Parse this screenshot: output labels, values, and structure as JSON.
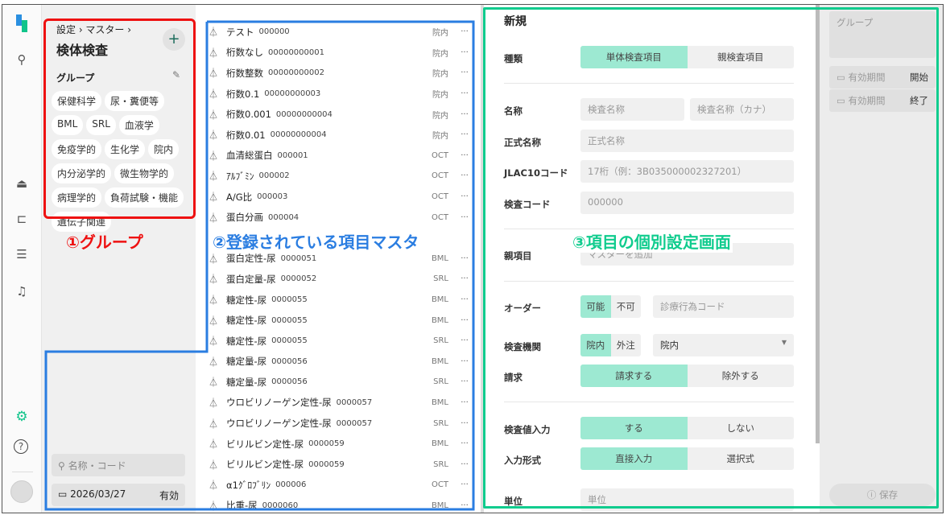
{
  "nav": {
    "icons": [
      "app-logo",
      "patient-search-icon",
      "meal-icon",
      "bed-icon",
      "list-icon",
      "bell-icon",
      "gear-icon",
      "help-icon",
      "avatar"
    ]
  },
  "group_panel": {
    "breadcrumb": "設定 › マスター ›",
    "title": "検体検査",
    "add_label": "+",
    "group_heading": "グループ",
    "chips": [
      "保健科学",
      "尿・糞便等",
      "BML",
      "SRL",
      "血液学",
      "免疫学的",
      "生化学",
      "院内",
      "内分泌学的",
      "微生物学的",
      "病理学的",
      "負荷試験・機能",
      "遺伝子関連"
    ],
    "search_placeholder": "名称・コード",
    "date": "2026/03/27",
    "date_status": "有効"
  },
  "list": {
    "items": [
      {
        "name": "テスト",
        "code": "000000",
        "org": "院内"
      },
      {
        "name": "桁数なし",
        "code": "00000000001",
        "org": "院内"
      },
      {
        "name": "桁数整数",
        "code": "00000000002",
        "org": "院内"
      },
      {
        "name": "桁数0.1",
        "code": "00000000003",
        "org": "院内"
      },
      {
        "name": "桁数0.001",
        "code": "00000000004",
        "org": "院内"
      },
      {
        "name": "桁数0.01",
        "code": "00000000004",
        "org": "院内"
      },
      {
        "name": "血清総蛋白",
        "code": "000001",
        "org": "OCT"
      },
      {
        "name": "ｱﾙﾌﾞﾐﾝ",
        "code": "000002",
        "org": "OCT"
      },
      {
        "name": "A/G比",
        "code": "000003",
        "org": "OCT"
      },
      {
        "name": "蛋白分画",
        "code": "000004",
        "org": "OCT"
      },
      {
        "name": "蛋白定性-尿",
        "code": "0000051",
        "org": "BML"
      },
      {
        "name": "蛋白定量-尿",
        "code": "0000052",
        "org": "SRL"
      },
      {
        "name": "糖定性-尿",
        "code": "0000055",
        "org": "BML"
      },
      {
        "name": "糖定性-尿",
        "code": "0000055",
        "org": "BML"
      },
      {
        "name": "糖定性-尿",
        "code": "0000055",
        "org": "SRL"
      },
      {
        "name": "糖定量-尿",
        "code": "0000056",
        "org": "BML"
      },
      {
        "name": "糖定量-尿",
        "code": "0000056",
        "org": "SRL"
      },
      {
        "name": "ウロビリノーゲン定性-尿",
        "code": "0000057",
        "org": "BML"
      },
      {
        "name": "ウロビリノーゲン定性-尿",
        "code": "0000057",
        "org": "SRL"
      },
      {
        "name": "ビリルビン定性-尿",
        "code": "0000059",
        "org": "BML"
      },
      {
        "name": "ビリルビン定性-尿",
        "code": "0000059",
        "org": "SRL"
      },
      {
        "name": "α1ｸﾞﾛﾌﾞﾘﾝ",
        "code": "000006",
        "org": "OCT"
      },
      {
        "name": "比重-尿",
        "code": "0000060",
        "org": "BML"
      }
    ],
    "more": "···"
  },
  "form": {
    "title": "新規",
    "type": {
      "label": "種類",
      "options": [
        "単体検査項目",
        "親検査項目"
      ],
      "selected": 0
    },
    "name": {
      "label": "名称",
      "placeholder": "検査名称",
      "kana_placeholder": "検査名称（カナ）"
    },
    "formal_name": {
      "label": "正式名称",
      "placeholder": "正式名称"
    },
    "jlac10": {
      "label": "JLAC10コード",
      "placeholder": "17桁（例：3B035000002327201）"
    },
    "test_code": {
      "label": "検査コード",
      "placeholder": "000000"
    },
    "parent": {
      "label": "親項目",
      "placeholder": "マスターを追加"
    },
    "order": {
      "label": "オーダー",
      "options": [
        "可能",
        "不可"
      ],
      "selected": 0,
      "placeholder": "診療行為コード"
    },
    "lab": {
      "label": "検査機関",
      "options": [
        "院内",
        "外注"
      ],
      "selected": 0,
      "select_value": "院内"
    },
    "billing": {
      "label": "請求",
      "options": [
        "請求する",
        "除外する"
      ],
      "selected": 0
    },
    "value_input": {
      "label": "検査値入力",
      "options": [
        "する",
        "しない"
      ],
      "selected": 0
    },
    "input_format": {
      "label": "入力形式",
      "options": [
        "直接入力",
        "選択式"
      ],
      "selected": 0
    },
    "unit": {
      "label": "単位",
      "placeholder": "単位"
    }
  },
  "side": {
    "group_placeholder": "グループ",
    "period_label": "有効期間",
    "start": "開始",
    "end": "終了",
    "save": "保存"
  },
  "annotations": {
    "a1": "①グループ",
    "a2": "②登録されている項目マスタ",
    "a3": "③項目の個別設定画面"
  },
  "colors": {
    "accent": "#9de9d2",
    "brand": "#10c48a",
    "a1": "#ee1111",
    "a2": "#2a7de1",
    "a3": "#10cc8e"
  }
}
